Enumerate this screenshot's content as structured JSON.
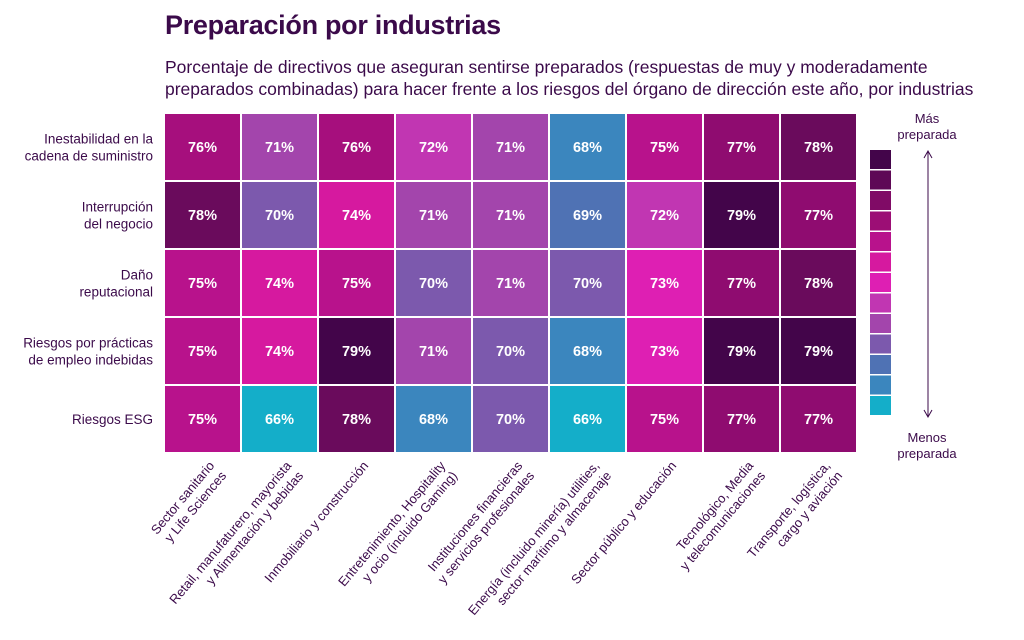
{
  "chart_data": {
    "type": "heatmap",
    "title": "Preparación por industrias",
    "subtitle": "Porcentaje de directivos que aseguran sentirse preparados (respuestas de muy y moderadamente preparados combinadas) para hacer frente a los riesgos del órgano de dirección este año, por industrias",
    "rows": [
      [
        "Inestabilidad en la",
        "cadena de suministro"
      ],
      [
        "Interrupción",
        "del negocio"
      ],
      [
        "Daño",
        "reputacional"
      ],
      [
        "Riesgos por prácticas",
        "de empleo indebidas"
      ],
      [
        "Riesgos ESG"
      ]
    ],
    "columns": [
      [
        "Sector sanitario",
        "y Life Sciences"
      ],
      [
        "Retail, manufaturero, mayorista",
        "y Alimentación y bebidas"
      ],
      [
        "Inmobiliario y construcción"
      ],
      [
        "Entretenimiento, Hospitality",
        "y ocio (incluido Gaming)"
      ],
      [
        "Instituciones financieras",
        "y servicios profesionales"
      ],
      [
        "Energía (incluido minería) utilities,",
        "sector marítimo y almacenaje"
      ],
      [
        "Sector público y educación"
      ],
      [
        "Tecnológico, Media",
        "y telecomunicaciones"
      ],
      [
        "Transporte, logística,",
        "cargo y aviación"
      ]
    ],
    "values": [
      [
        76,
        71,
        76,
        72,
        71,
        68,
        75,
        77,
        78
      ],
      [
        78,
        70,
        74,
        71,
        71,
        69,
        72,
        79,
        77
      ],
      [
        75,
        74,
        75,
        70,
        71,
        70,
        73,
        77,
        78
      ],
      [
        75,
        74,
        79,
        71,
        70,
        68,
        73,
        79,
        79
      ],
      [
        75,
        66,
        78,
        68,
        70,
        66,
        75,
        77,
        77
      ]
    ],
    "value_suffix": "%",
    "legend": {
      "high_label": [
        "Más",
        "preparada"
      ],
      "low_label": [
        "Menos",
        "preparada"
      ],
      "placement": "right"
    },
    "colors": {
      "66": "#14aec9",
      "68": "#3b86be",
      "69": "#4f72b4",
      "70": "#7c59ad",
      "71": "#a345ac",
      "72": "#c136b2",
      "73": "#de1fb3",
      "74": "#d6199f",
      "75": "#b8128c",
      "76": "#a60f7d",
      "77": "#8f0c70",
      "78": "#6a0b5c",
      "79": "#43054a"
    },
    "legend_colors": [
      "#43054a",
      "#5e0856",
      "#800b66",
      "#9c0e75",
      "#b8128c",
      "#d6199f",
      "#de1fb3",
      "#c136b2",
      "#a345ac",
      "#7c59ad",
      "#4f72b4",
      "#3b86be",
      "#14aec9"
    ]
  }
}
